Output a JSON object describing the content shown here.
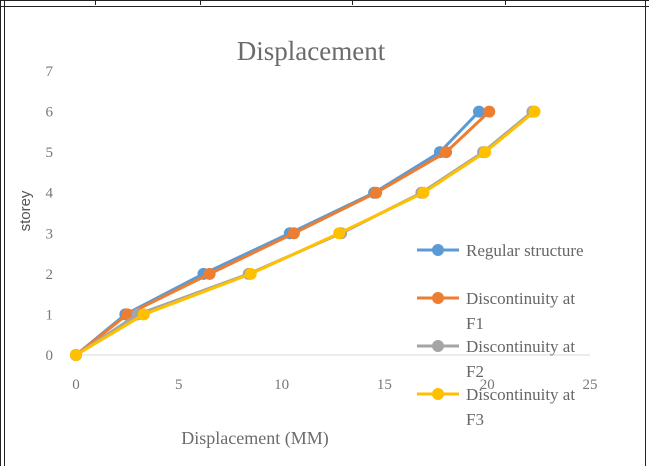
{
  "chart_data": {
    "type": "line",
    "title": "Displacement",
    "xlabel": "Displacement (MM)",
    "ylabel": "storey",
    "xlim": [
      0,
      25
    ],
    "ylim": [
      0,
      7
    ],
    "x_ticks": [
      "0",
      "5",
      "10",
      "15",
      "20",
      "25"
    ],
    "y_ticks": [
      "0",
      "1",
      "2",
      "3",
      "4",
      "5",
      "6",
      "7"
    ],
    "grid": false,
    "legend_position": "right",
    "series": [
      {
        "name": "Regular structure",
        "color": "#5b9bd5",
        "points": [
          [
            0,
            0
          ],
          [
            2.4,
            1
          ],
          [
            6.2,
            2
          ],
          [
            10.4,
            3
          ],
          [
            14.5,
            4
          ],
          [
            17.7,
            5
          ],
          [
            19.6,
            6
          ]
        ]
      },
      {
        "name": "Discontinuity at F1",
        "color": "#ed7d31",
        "points": [
          [
            0,
            0
          ],
          [
            2.5,
            1
          ],
          [
            6.5,
            2
          ],
          [
            10.6,
            3
          ],
          [
            14.6,
            4
          ],
          [
            18.0,
            5
          ],
          [
            20.1,
            6
          ]
        ]
      },
      {
        "name": "Discontinuity at F2",
        "color": "#a5a5a5",
        "points": [
          [
            0,
            0
          ],
          [
            3.0,
            1
          ],
          [
            8.4,
            2
          ],
          [
            12.9,
            3
          ],
          [
            16.8,
            4
          ],
          [
            19.8,
            5
          ],
          [
            22.2,
            6
          ]
        ]
      },
      {
        "name": "Discontinuity at F3",
        "color": "#ffc000",
        "points": [
          [
            0,
            0
          ],
          [
            3.3,
            1
          ],
          [
            8.5,
            2
          ],
          [
            12.8,
            3
          ],
          [
            16.9,
            4
          ],
          [
            19.9,
            5
          ],
          [
            22.3,
            6
          ]
        ]
      }
    ]
  }
}
